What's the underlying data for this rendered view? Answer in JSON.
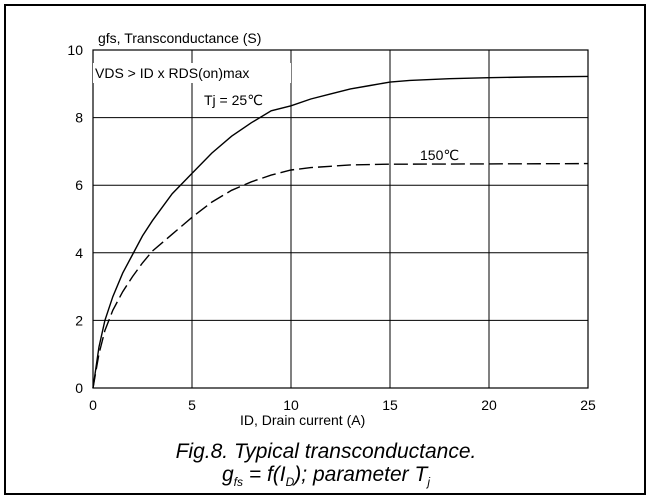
{
  "chart_data": {
    "type": "line",
    "ylabel": "gfs, Transconductance (S)",
    "xlabel": "ID, Drain current (A)",
    "xlim": [
      0,
      25
    ],
    "ylim": [
      0,
      10
    ],
    "x_ticks": [
      "0",
      "5",
      "10",
      "15",
      "20",
      "25"
    ],
    "y_ticks": [
      "0",
      "2",
      "4",
      "6",
      "8",
      "10"
    ],
    "grid": true,
    "annotations": {
      "condition": "VDS > ID x RDS(on)max",
      "tj_label": "Tj = 25℃",
      "hot_label": "150℃"
    },
    "series": [
      {
        "name": "Tj = 25℃",
        "style": "solid",
        "points": [
          [
            0,
            0
          ],
          [
            0.3,
            1.2
          ],
          [
            0.6,
            2.0
          ],
          [
            1,
            2.7
          ],
          [
            1.5,
            3.4
          ],
          [
            2,
            3.95
          ],
          [
            2.5,
            4.5
          ],
          [
            3,
            4.95
          ],
          [
            3.5,
            5.35
          ],
          [
            4,
            5.75
          ],
          [
            5,
            6.35
          ],
          [
            6,
            6.95
          ],
          [
            7,
            7.45
          ],
          [
            8,
            7.85
          ],
          [
            9,
            8.2
          ],
          [
            10,
            8.35
          ],
          [
            11,
            8.55
          ],
          [
            12,
            8.7
          ],
          [
            13,
            8.85
          ],
          [
            14,
            8.95
          ],
          [
            15,
            9.05
          ],
          [
            16,
            9.1
          ],
          [
            18,
            9.15
          ],
          [
            20,
            9.18
          ],
          [
            22,
            9.2
          ],
          [
            25,
            9.22
          ]
        ]
      },
      {
        "name": "150℃",
        "style": "dashed",
        "points": [
          [
            0,
            0
          ],
          [
            0.3,
            1.0
          ],
          [
            0.6,
            1.7
          ],
          [
            1,
            2.3
          ],
          [
            1.5,
            2.85
          ],
          [
            2,
            3.3
          ],
          [
            2.5,
            3.7
          ],
          [
            3,
            4.05
          ],
          [
            4,
            4.55
          ],
          [
            5,
            5.05
          ],
          [
            6,
            5.5
          ],
          [
            7,
            5.85
          ],
          [
            8,
            6.1
          ],
          [
            9,
            6.3
          ],
          [
            10,
            6.45
          ],
          [
            11,
            6.52
          ],
          [
            12,
            6.56
          ],
          [
            13,
            6.6
          ],
          [
            15,
            6.62
          ],
          [
            20,
            6.63
          ],
          [
            25,
            6.64
          ]
        ]
      }
    ]
  },
  "caption": {
    "line1": "Fig.8.  Typical transconductance.",
    "g": "g",
    "fs": "fs",
    "mid": " = f(I",
    "d": "D",
    "tail": "); parameter T",
    "j": "j"
  },
  "colors": {
    "line": "#000000",
    "grid": "#000000",
    "background": "#ffffff"
  }
}
